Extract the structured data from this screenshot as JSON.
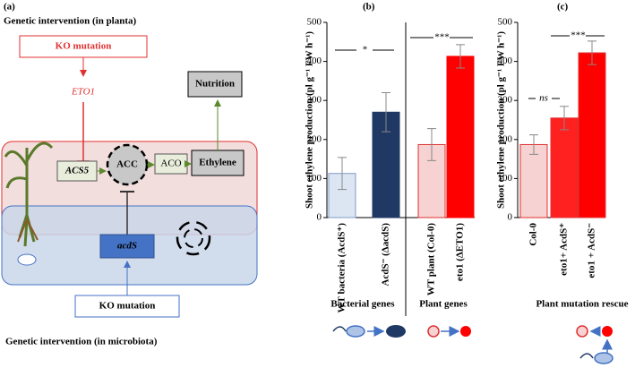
{
  "diagram": {
    "panel": "(a)",
    "top_title": "Genetic intervention (in planta)",
    "top_ko": "KO mutation",
    "eto1": "ETO1",
    "acs5": "ACS5",
    "acc": "ACC",
    "aco": "ACO",
    "ethylene": "Ethylene",
    "nutrition": "Nutrition",
    "acds": "acdS",
    "bottom_ko": "KO mutation",
    "bottom_title": "Genetic intervention (in microbiota)"
  },
  "chart_data": [
    {
      "type": "bar",
      "panel": "(b)",
      "ylabel": "Shoot ethylene production (pl g⁻¹ FW h⁻¹)",
      "categories": [
        "WT bacteria (AcdS⁺)",
        "AcdS⁻ (ΔacdS)",
        "WT plant (Col-0)",
        "eto1 (ΔETO1)"
      ],
      "values": [
        113,
        270,
        187,
        413
      ],
      "errors": [
        41,
        50,
        41,
        30
      ],
      "colors": [
        "#dce6f2",
        "#1f3864",
        "#f6d2d2",
        "#ff0000"
      ],
      "edgecolors": [
        "#7f9cc8",
        "#1f3864",
        "#e03030",
        "#ff0000"
      ],
      "ylim": [
        0,
        500
      ],
      "yticks": [
        0,
        100,
        200,
        300,
        400,
        500
      ],
      "significance": [
        "*",
        "***"
      ],
      "groups": [
        "Bacterial genes",
        "Plant genes"
      ]
    },
    {
      "type": "bar",
      "panel": "(c)",
      "ylabel": "Shoot ethylene production (pl g⁻¹ FW h⁻¹)",
      "categories": [
        "Col-0",
        "eto1+ AcdS⁺",
        "eto1 + AcdS⁻"
      ],
      "values": [
        187,
        255,
        422
      ],
      "errors": [
        25,
        30,
        30
      ],
      "colors": [
        "#f6d2d2",
        "#ff2020",
        "#ff0000"
      ],
      "edgecolors": [
        "#e03030",
        "#e03030",
        "#e03030"
      ],
      "ylim": [
        0,
        500
      ],
      "yticks": [
        0,
        100,
        200,
        300,
        400,
        500
      ],
      "significance": [
        "ns",
        "***"
      ],
      "groups": [
        "Plant mutation rescue"
      ]
    }
  ]
}
